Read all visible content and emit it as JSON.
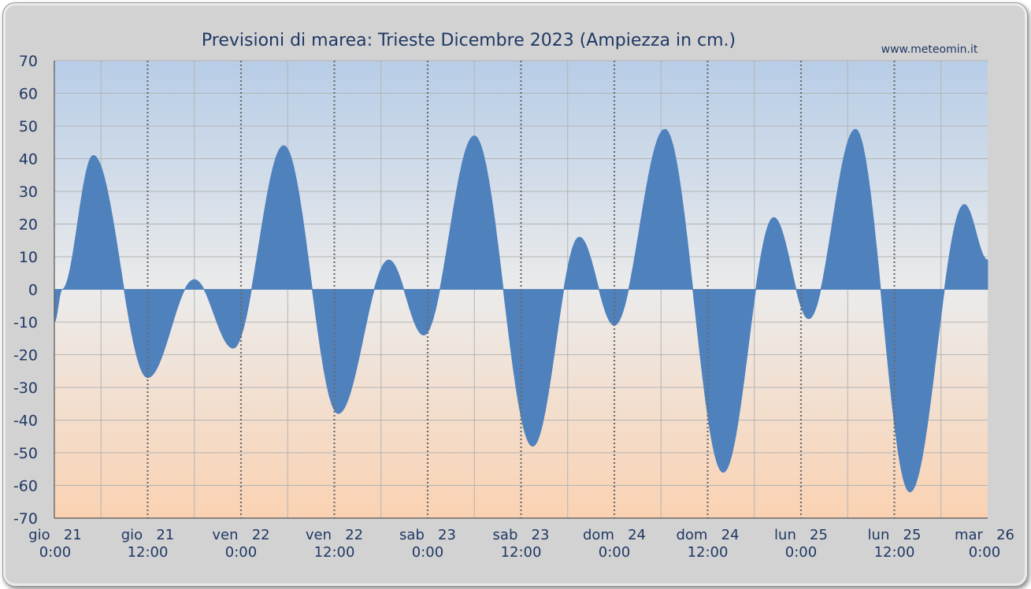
{
  "chart_data": {
    "type": "area",
    "title": "Previsioni di marea: Trieste Dicembre 2023 (Ampiezza in cm.)",
    "source": "www.meteomin.it",
    "ylim": [
      -70,
      70
    ],
    "y_ticks": [
      "70",
      "60",
      "50",
      "40",
      "30",
      "20",
      "10",
      "0",
      "-10",
      "-20",
      "-30",
      "-40",
      "-50",
      "-60",
      "-70"
    ],
    "x_range_hours": [
      0,
      120
    ],
    "x_ticks": [
      {
        "day": "gio   21",
        "time": "0:00"
      },
      {
        "day": "gio   21",
        "time": "12:00"
      },
      {
        "day": "ven   22",
        "time": "0:00"
      },
      {
        "day": "ven   22",
        "time": "12:00"
      },
      {
        "day": "sab   23",
        "time": "0:00"
      },
      {
        "day": "sab   23",
        "time": "12:00"
      },
      {
        "day": "dom   24",
        "time": "0:00"
      },
      {
        "day": "dom   24",
        "time": "12:00"
      },
      {
        "day": "lun   25",
        "time": "0:00"
      },
      {
        "day": "lun   25",
        "time": "12:00"
      },
      {
        "day": "mar   26",
        "time": "0:00"
      }
    ],
    "grid": true,
    "series": [
      {
        "color": "#4f81bd",
        "points": [
          {
            "x": 0,
            "y": -10
          },
          {
            "x": 1.0,
            "y": 0
          },
          {
            "x": 5.0,
            "y": 41
          },
          {
            "x": 12.0,
            "y": -27
          },
          {
            "x": 18.0,
            "y": 3
          },
          {
            "x": 23.0,
            "y": -18
          },
          {
            "x": 29.5,
            "y": 44
          },
          {
            "x": 36.5,
            "y": -38
          },
          {
            "x": 43.0,
            "y": 9
          },
          {
            "x": 47.5,
            "y": -14
          },
          {
            "x": 54.0,
            "y": 47
          },
          {
            "x": 61.5,
            "y": -48
          },
          {
            "x": 67.5,
            "y": 16
          },
          {
            "x": 72.0,
            "y": -11
          },
          {
            "x": 78.5,
            "y": 49
          },
          {
            "x": 86.0,
            "y": -56
          },
          {
            "x": 92.5,
            "y": 22
          },
          {
            "x": 97.0,
            "y": -9
          },
          {
            "x": 103.0,
            "y": 49
          },
          {
            "x": 110.0,
            "y": -62
          },
          {
            "x": 117.0,
            "y": 26
          },
          {
            "x": 120.0,
            "y": 9
          }
        ]
      }
    ]
  }
}
